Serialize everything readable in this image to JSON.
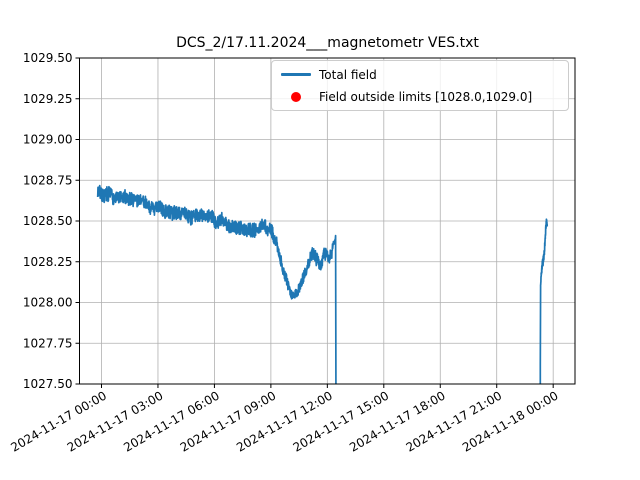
{
  "title": "DCS_2/17.11.2024___magnetometr VES.txt",
  "colors": {
    "background": "#ffffff",
    "line": "#1f77b4",
    "marker": "#ff0000",
    "grid": "#b0b0b0",
    "spine": "#000000",
    "tick_text": "#000000",
    "legend_border": "#cccccc"
  },
  "chart_data": {
    "type": "line",
    "title": "DCS_2/17.11.2024___magnetometr VES.txt",
    "xlabel": "",
    "ylabel": "",
    "grid": true,
    "legend_position": "upper right",
    "ylim": [
      1027.5,
      1029.5
    ],
    "xlim_hours": [
      -1.17,
      25.17
    ],
    "field_limits": [
      1028.0,
      1029.0
    ],
    "y_ticks": {
      "values": [
        1027.5,
        1027.75,
        1028.0,
        1028.25,
        1028.5,
        1028.75,
        1029.0,
        1029.25,
        1029.5
      ],
      "labels": [
        "1027.50",
        "1027.75",
        "1028.00",
        "1028.25",
        "1028.50",
        "1028.75",
        "1029.00",
        "1029.25",
        "1029.50"
      ]
    },
    "x_ticks": {
      "hours": [
        0,
        3,
        6,
        9,
        12,
        15,
        18,
        21,
        24
      ],
      "labels": [
        "2024-11-17 00:00",
        "2024-11-17 03:00",
        "2024-11-17 06:00",
        "2024-11-17 09:00",
        "2024-11-17 12:00",
        "2024-11-17 15:00",
        "2024-11-17 18:00",
        "2024-11-17 21:00",
        "2024-11-18 00:00"
      ]
    },
    "legend": {
      "entries": [
        {
          "label": "Total field",
          "type": "line",
          "color": "#1f77b4"
        },
        {
          "label": "Field outside limits [1028.0,1029.0]",
          "type": "dot",
          "color": "#ff0000"
        }
      ]
    },
    "series": [
      {
        "name": "Total field",
        "color": "#1f77b4",
        "style": "noisy-line",
        "segments": [
          {
            "seed": 7,
            "step": 0.012,
            "amp": 0.042,
            "anchors": [
              [
                -0.2,
                1028.69,
                1.0
              ],
              [
                0.25,
                1028.67,
                1.0
              ],
              [
                0.75,
                1028.64,
                1.0
              ],
              [
                1.25,
                1028.63,
                1.0
              ],
              [
                1.75,
                1028.62,
                1.0
              ],
              [
                2.25,
                1028.6,
                1.0
              ],
              [
                2.75,
                1028.59,
                1.0
              ],
              [
                3.25,
                1028.57,
                1.0
              ],
              [
                3.75,
                1028.55,
                1.0
              ],
              [
                4.25,
                1028.55,
                1.0
              ],
              [
                4.75,
                1028.54,
                1.0
              ],
              [
                5.25,
                1028.53,
                1.0
              ],
              [
                5.75,
                1028.51,
                1.0
              ],
              [
                6.25,
                1028.5,
                1.0
              ],
              [
                6.75,
                1028.49,
                1.0
              ],
              [
                7.25,
                1028.47,
                1.0
              ],
              [
                7.75,
                1028.46,
                1.0
              ],
              [
                8.2,
                1028.46,
                1.0
              ],
              [
                8.6,
                1028.49,
                1.0
              ],
              [
                9.0,
                1028.44,
                1.0
              ],
              [
                9.35,
                1028.35,
                0.9
              ],
              [
                9.65,
                1028.22,
                0.8
              ],
              [
                9.95,
                1028.1,
                0.7
              ],
              [
                10.15,
                1028.04,
                0.6
              ],
              [
                10.4,
                1028.07,
                0.7
              ],
              [
                10.7,
                1028.16,
                0.8
              ],
              [
                11.0,
                1028.26,
                0.9
              ],
              [
                11.25,
                1028.32,
                0.9
              ],
              [
                11.45,
                1028.28,
                1.0
              ],
              [
                11.65,
                1028.24,
                1.0
              ],
              [
                11.85,
                1028.31,
                1.0
              ],
              [
                12.05,
                1028.27,
                1.0
              ],
              [
                12.25,
                1028.33,
                0.9
              ],
              [
                12.38,
                1028.38,
                0.5
              ],
              [
                12.44,
                1028.41,
                0.1
              ],
              [
                12.46,
                1027.3,
                0.0
              ],
              [
                12.55,
                1027.3,
                0.0
              ]
            ]
          },
          {
            "seed": 13,
            "step": 0.004,
            "amp": 0.04,
            "anchors": [
              [
                23.295,
                1027.3,
                0.0
              ],
              [
                23.31,
                1027.3,
                0.0
              ],
              [
                23.33,
                1028.1,
                0.1
              ],
              [
                23.37,
                1028.19,
                0.4
              ],
              [
                23.42,
                1028.24,
                0.7
              ],
              [
                23.47,
                1028.27,
                0.7
              ],
              [
                23.52,
                1028.3,
                0.5
              ],
              [
                23.56,
                1028.36,
                0.5
              ],
              [
                23.61,
                1028.46,
                0.5
              ],
              [
                23.65,
                1028.5,
                0.4
              ],
              [
                23.68,
                1028.47,
                0.3
              ]
            ]
          }
        ]
      }
    ],
    "outside_limit_points": []
  }
}
